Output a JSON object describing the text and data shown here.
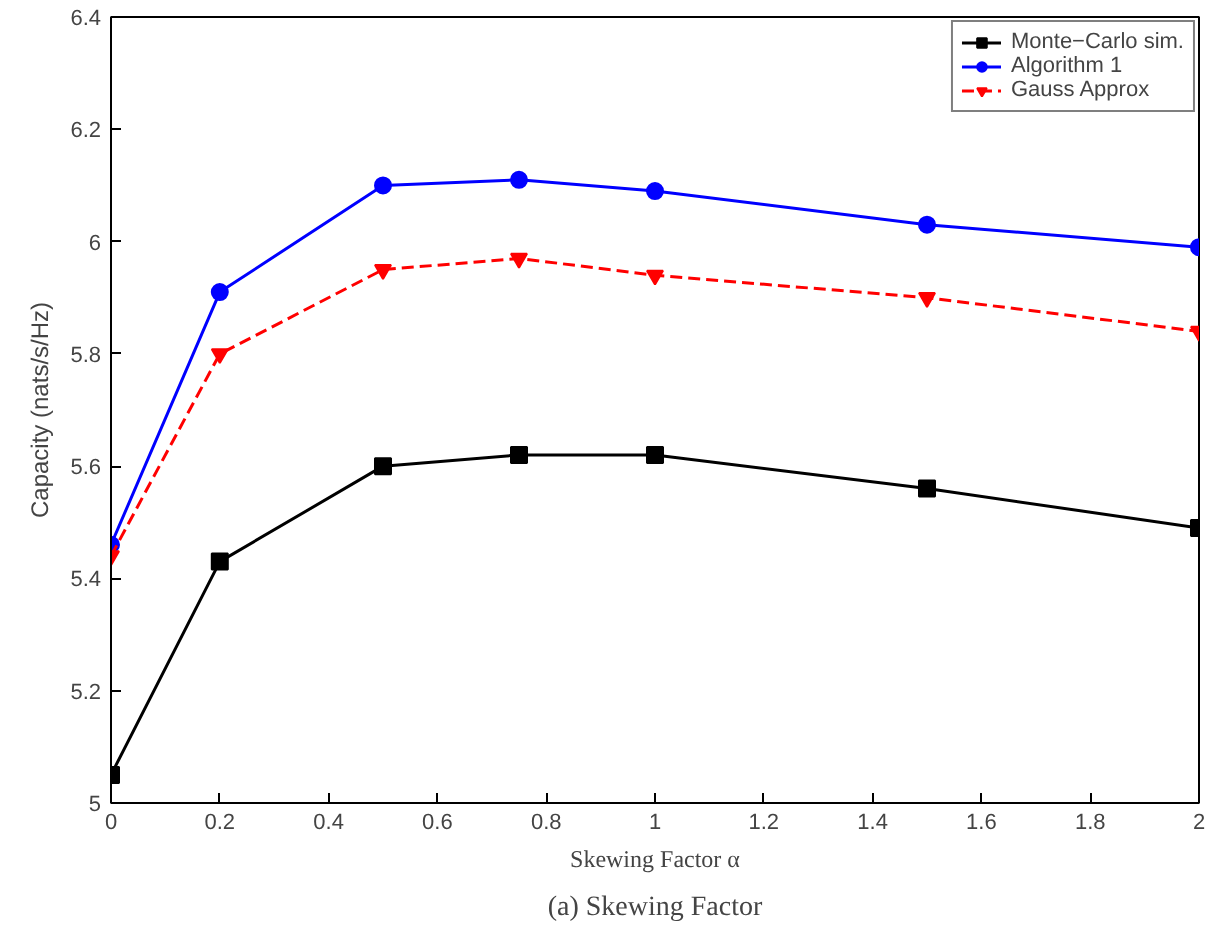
{
  "chart_data": {
    "type": "line",
    "xlabel": "Skewing Factor α",
    "ylabel": "Capacity (nats/s/Hz)",
    "annotations": [
      "(a) Skewing Factor"
    ],
    "x": [
      0,
      0.2,
      0.5,
      0.75,
      1,
      1.5,
      2
    ],
    "xlim": [
      0,
      2
    ],
    "xticks": [
      0,
      0.2,
      0.4,
      0.6,
      0.8,
      1,
      1.2,
      1.4,
      1.6,
      1.8,
      2
    ],
    "ylim": [
      5,
      6.4
    ],
    "yticks": [
      5,
      5.2,
      5.4,
      5.6,
      5.8,
      6,
      6.2,
      6.4
    ],
    "legend": "top right",
    "grid": false,
    "series": [
      {
        "name": "Monte−Carlo sim.",
        "color": "#000000",
        "marker": "square",
        "line_style": "solid",
        "values": [
          5.05,
          5.43,
          5.6,
          5.62,
          5.62,
          5.56,
          5.49
        ]
      },
      {
        "name": "Algorithm 1",
        "color": "#0000ff",
        "marker": "circle",
        "line_style": "solid",
        "values": [
          5.46,
          5.91,
          6.1,
          6.11,
          6.09,
          6.03,
          5.99
        ]
      },
      {
        "name": "Gauss Approx",
        "color": "#ff0000",
        "marker": "triangle",
        "line_style": "dashed",
        "values": [
          5.44,
          5.8,
          5.95,
          5.97,
          5.94,
          5.9,
          5.84
        ]
      }
    ]
  }
}
